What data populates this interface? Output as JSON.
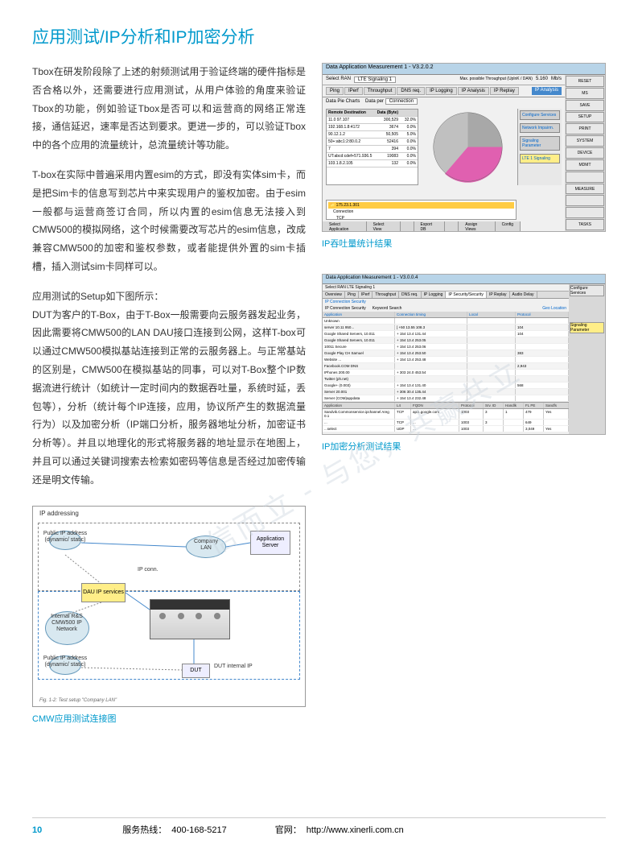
{
  "title": "应用测试/IP分析和IP加密分析",
  "paragraphs": {
    "p1": "Tbox在研发阶段除了上述的射频测试用于验证终端的硬件指标是否合格以外，还需要进行应用测试，从用户体验的角度来验证Tbox的功能，例如验证Tbox是否可以和运营商的网络正常连接，通信延迟，速率是否达到要求。更进一步的，可以验证Tbox中的各个应用的流量统计，总流量统计等功能。",
    "p2": "T-box在实际中普遍采用内置esim的方式，即没有实体sim卡，而是把Sim卡的信息写到芯片中来实现用户的鉴权加密。由于esim一般都与运营商签订合同，所以内置的esim信息无法接入到CMW500的模拟网络，这个时候需要改写芯片的esim信息，改成兼容CMW500的加密和鉴权参数，或者能提供外置的sim卡插槽，插入测试sim卡同样可以。",
    "p3_intro": "应用测试的Setup如下图所示：",
    "p3": "DUT为客户的T-Box，由于T-Box一般需要向云服务器发起业务，因此需要将CMW500的LAN DAU接口连接到公网，这样T-box可以通过CMW500模拟基站连接到正常的云服务器上。与正常基站的区别是，CMW500在模拟基站的同事，可以对T-Box整个IP数据流进行统计（如统计一定时间内的数据吞吐量，系统时延，丢包等），分析（统计每个IP连接，应用，协议所产生的数据流量行为）以及加密分析（IP端口分析，服务器地址分析，加密证书分析等）。并且以地理化的形式将服务器的地址显示在地图上，并且可以通过关键词搜索去检索如密码等信息是否经过加密传输还是明文传输。"
  },
  "shot1": {
    "window_title": "Data Application Measurement 1 - V3.2.0.2",
    "subtitle_left": "Select RAN",
    "subtitle_val": "LTE Signaling 1",
    "throughput_label": "Max. possible Throughput (UplnK / DAN)",
    "throughput_up": "5.160",
    "throughput_dn": "5.160",
    "throughput_unit": "Mb/s",
    "tabs": [
      "Ping",
      "IPerf",
      "Throughput",
      "DNS req.",
      "IP Logging",
      "IP Analysis",
      "IP Replay"
    ],
    "tab_right_btn": "IP Analysis",
    "sidebar_btns": [
      "RESET",
      "MS",
      "SAVE",
      "SETUP",
      "PRINT",
      "SYSTEM",
      "DEVICE",
      "MDMT",
      "",
      "MEASURE",
      "",
      "",
      "TASKS"
    ],
    "chart_title": "Data Pie Charts",
    "data_per": "Data per",
    "data_per_val": "Connection",
    "table_header": [
      "Remote Destination",
      "Data (Byte)",
      ""
    ],
    "table_rows": [
      [
        "11.0 97.107",
        "300,529",
        "17",
        "32.0%"
      ],
      [
        "192.168.1.8:4172",
        "3674",
        "0",
        "0.0%"
      ],
      [
        "90.12.1.2",
        "50,505",
        "5",
        "5.0%"
      ],
      [
        "50+:abc1:2:80.0.2",
        "52416",
        "6",
        "0.0%"
      ],
      [
        "7",
        "394",
        "0",
        "0.0%"
      ],
      [
        "UT:abcd:cdef+571.936.5",
        "19083",
        "5",
        "0.0%"
      ],
      [
        "103.1.8.2.105",
        "132",
        "0",
        "0.0%"
      ]
    ],
    "pie": {
      "slices": [
        {
          "value": 32,
          "color": "#c0c0c0"
        },
        {
          "value": 60,
          "color": "#e060b0"
        },
        {
          "value": 8,
          "color": "#a0a0a0"
        }
      ]
    },
    "ip_display": "175.23.1.301",
    "rightpanel": {
      "boxes": [
        "Configure Services",
        "Network Impairm.",
        "Signaling Parameter",
        "LTE 1 Signaling"
      ]
    },
    "bottom_tree": [
      "Connection",
      "TCP",
      "..."
    ],
    "bottombar": [
      "Select Application",
      "Select View",
      "",
      "Export DB",
      "",
      "Assign Views",
      "Config"
    ],
    "caption": "IP吞吐量统计结果"
  },
  "shot2": {
    "caption": "IP加密分析测试结果",
    "window_title": "Data Application Measurement 1 - V3.0.0.4",
    "ran": "Select RAN  LTE Signaling 1",
    "tabs": [
      "Overview",
      "Ping",
      "IPerf",
      "Throughput",
      "DNS req.",
      "IP Logging",
      "IP Security/Security",
      "IP Replay",
      "Audio Delay"
    ],
    "sub_tabs": [
      "IP Connection Security",
      "IP Connection Security",
      "Keyword Search"
    ],
    "columns": [
      "Application",
      "Connection timing",
      "Local",
      "",
      "",
      "Protocol",
      "Quality of Service"
    ],
    "rows": [
      [
        "Unknown",
        "",
        "",
        "",
        "",
        "",
        ""
      ],
      [
        "  server 10.11 950...",
        "",
        "[ +50 13.55 108.3",
        "",
        "",
        "",
        "104"
      ],
      [
        "  Google Shared Servers, 10.011",
        "",
        "+ 154 13.4 131.44",
        "",
        "",
        "",
        "104"
      ],
      [
        "  Google Shared Servers, 10.011",
        "",
        "+ 154 13.4 253.05",
        "",
        "",
        "",
        ""
      ],
      [
        "  10011 Secure",
        "",
        "+ 154 13.4 253.06",
        "",
        "",
        "",
        ""
      ],
      [
        "  Google Play CH Samuel",
        "",
        "+ 154 13.4 253.50",
        "",
        "",
        "",
        "383"
      ],
      [
        "  Website ...",
        "",
        "+ 154 13.4 253.48",
        "",
        "",
        "",
        ""
      ],
      [
        "  Facebook.COM DNS",
        "",
        "",
        "",
        "",
        "",
        "2,943"
      ],
      [
        "  IPhones 200.00",
        "",
        "+ 303 24.0 453.54",
        "",
        "",
        "",
        ""
      ],
      [
        "  Twitter (ph.net)",
        "",
        "",
        "",
        "",
        "",
        ""
      ],
      [
        "  Google+ (0.003)",
        "",
        "+ 154 13.4 131.40",
        "",
        "",
        "",
        "568"
      ],
      [
        "  Server 20.001",
        "",
        "+ 306 30.4 135.44",
        "",
        "",
        "",
        ""
      ],
      [
        "  Server (COM)appdata",
        "",
        "+ 154 13.4 232.48",
        "",
        "",
        "",
        ""
      ]
    ],
    "bottom_header": [
      "Application",
      "L4",
      "FQDN",
      "Protocol",
      "Srv. ID",
      "Handlk",
      "FL PE",
      "Sandfs",
      "FL Hy"
    ],
    "bottom_rows": [
      [
        "Sandvik.Commonservice.ipchannel Areg 0.1",
        "TCP",
        "api1.google.com",
        "1003",
        "3",
        "1",
        "479",
        "Yes"
      ],
      [
        "...",
        "TCP",
        "...",
        "1003",
        "3",
        "",
        "649",
        ""
      ],
      [
        "...select",
        "UDP",
        "...",
        "1003",
        "",
        "",
        "3,049",
        "Yes"
      ]
    ]
  },
  "diagram": {
    "caption": "CMW应用测试连接图",
    "title": "IP addressing",
    "public_ip": "Public IP address (dynamic/ static)",
    "dau": "DAU IP services",
    "internal": "Internal R&S CMW500 IP Network",
    "company_lan": "Company LAN",
    "app_server": "Application Server",
    "dut": "DUT",
    "dut_label": "DUT internal IP",
    "ip_conn": "IP conn.",
    "footer": "Fig. 1-2: Test setup \"Company LAN\""
  },
  "watermark": "信而立 - 与您，共赢共立",
  "footer": {
    "page": "10",
    "hotline_label": "服务热线：",
    "hotline": "400-168-5217",
    "site_label": "官网：",
    "site": "http://www.xinerli.com.cn"
  }
}
